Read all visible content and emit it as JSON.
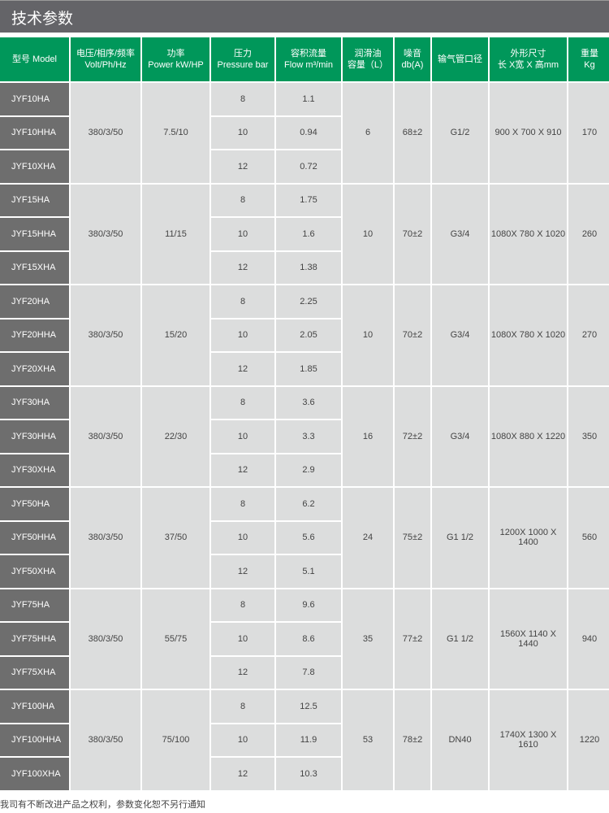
{
  "title": "技术参数",
  "headers": [
    {
      "l1": "型号 Model",
      "l2": ""
    },
    {
      "l1": "电压/相序/频率",
      "l2": "Volt/Ph/Hz"
    },
    {
      "l1": "功率",
      "l2": "Power kW/HP"
    },
    {
      "l1": "压力",
      "l2": "Pressure bar"
    },
    {
      "l1": "容积流量",
      "l2": "Flow m³/min"
    },
    {
      "l1": "润滑油",
      "l2": "容量（L）"
    },
    {
      "l1": "噪音",
      "l2": "db(A)"
    },
    {
      "l1": "输气管口径",
      "l2": ""
    },
    {
      "l1": "外形尺寸",
      "l2": "长 X宽 X 高mm"
    },
    {
      "l1": "重量",
      "l2": "Kg"
    }
  ],
  "groups": [
    {
      "models": [
        "JYF10HA",
        "JYF10HHA",
        "JYF10XHA"
      ],
      "volt": "380/3/50",
      "power": "7.5/10",
      "pressures": [
        "8",
        "10",
        "12"
      ],
      "flows": [
        "1.1",
        "0.94",
        "0.72"
      ],
      "oil": "6",
      "noise": "68±2",
      "pipe": "G1/2",
      "dims": "900 X 700 X 910",
      "weight": "170"
    },
    {
      "models": [
        "JYF15HA",
        "JYF15HHA",
        "JYF15XHA"
      ],
      "volt": "380/3/50",
      "power": "11/15",
      "pressures": [
        "8",
        "10",
        "12"
      ],
      "flows": [
        "1.75",
        "1.6",
        "1.38"
      ],
      "oil": "10",
      "noise": "70±2",
      "pipe": "G3/4",
      "dims": "1080X 780 X 1020",
      "weight": "260"
    },
    {
      "models": [
        "JYF20HA",
        "JYF20HHA",
        "JYF20XHA"
      ],
      "volt": "380/3/50",
      "power": "15/20",
      "pressures": [
        "8",
        "10",
        "12"
      ],
      "flows": [
        "2.25",
        "2.05",
        "1.85"
      ],
      "oil": "10",
      "noise": "70±2",
      "pipe": "G3/4",
      "dims": "1080X 780 X 1020",
      "weight": "270"
    },
    {
      "models": [
        "JYF30HA",
        "JYF30HHA",
        "JYF30XHA"
      ],
      "volt": "380/3/50",
      "power": "22/30",
      "pressures": [
        "8",
        "10",
        "12"
      ],
      "flows": [
        "3.6",
        "3.3",
        "2.9"
      ],
      "oil": "16",
      "noise": "72±2",
      "pipe": "G3/4",
      "dims": "1080X 880 X 1220",
      "weight": "350"
    },
    {
      "models": [
        "JYF50HA",
        "JYF50HHA",
        "JYF50XHA"
      ],
      "volt": "380/3/50",
      "power": "37/50",
      "pressures": [
        "8",
        "10",
        "12"
      ],
      "flows": [
        "6.2",
        "5.6",
        "5.1"
      ],
      "oil": "24",
      "noise": "75±2",
      "pipe": "G1 1/2",
      "dims": "1200X 1000 X 1400",
      "weight": "560"
    },
    {
      "models": [
        "JYF75HA",
        "JYF75HHA",
        "JYF75XHA"
      ],
      "volt": "380/3/50",
      "power": "55/75",
      "pressures": [
        "8",
        "10",
        "12"
      ],
      "flows": [
        "9.6",
        "8.6",
        "7.8"
      ],
      "oil": "35",
      "noise": "77±2",
      "pipe": "G1 1/2",
      "dims": "1560X 1140 X 1440",
      "weight": "940"
    },
    {
      "models": [
        "JYF100HA",
        "JYF100HHA",
        "JYF100XHA"
      ],
      "volt": "380/3/50",
      "power": "75/100",
      "pressures": [
        "8",
        "10",
        "12"
      ],
      "flows": [
        "12.5",
        "11.9",
        "10.3"
      ],
      "oil": "53",
      "noise": "78±2",
      "pipe": "DN40",
      "dims": "1740X 1300 X 1610",
      "weight": "1220"
    }
  ],
  "footnote": "我司有不断改进产品之权利，参数变化恕不另行通知",
  "colors": {
    "title_bg": "#646468",
    "header_bg": "#00975a",
    "model_bg": "#6e6e6e",
    "cell_bg": "#dcdddd"
  }
}
